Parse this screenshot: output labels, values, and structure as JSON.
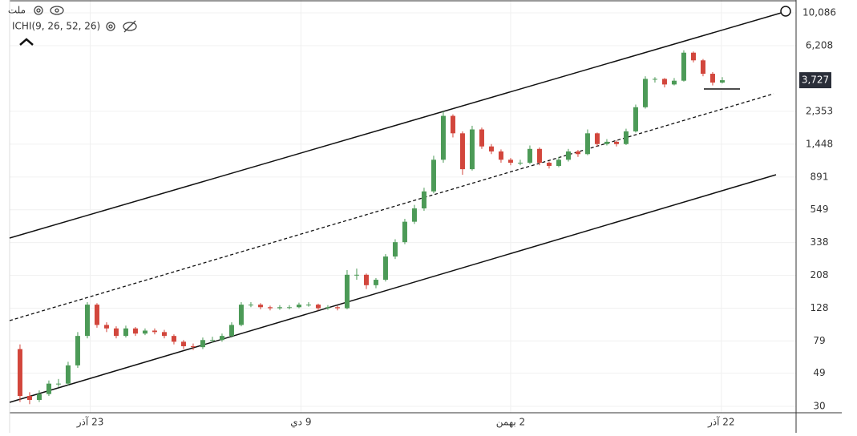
{
  "chart_data": {
    "type": "candlestick",
    "symbol": "ملت",
    "indicator": "ICHI(9, 26, 52, 26)",
    "log_y": true,
    "grid": true,
    "up_color": "#4c9a57",
    "down_color": "#d2463c",
    "ylim": [
      27.3,
      12200
    ],
    "yticks": [
      30,
      49,
      79,
      128,
      208,
      338,
      549,
      891,
      {
        "value": 1448,
        "label": "1,448"
      },
      {
        "value": 2353,
        "label": "2,353"
      },
      {
        "value": 6208,
        "label": "6,208"
      },
      {
        "value": 10086,
        "label": "10,086"
      }
    ],
    "xlim": [
      -1.08,
      80.67
    ],
    "xticks": [
      {
        "value": 7.3,
        "label": "23 آذر"
      },
      {
        "value": 29.2,
        "label": "9 دي"
      },
      {
        "value": 51,
        "label": "2 بهمن"
      },
      {
        "value": 72.9,
        "label": "22 آذر"
      }
    ],
    "last_price": 3727,
    "last_price_label": "3,727",
    "ohlc": [
      [
        70,
        75,
        32,
        35
      ],
      [
        35,
        37,
        31,
        33
      ],
      [
        33,
        38,
        32,
        36
      ],
      [
        36,
        44,
        35,
        42
      ],
      [
        42,
        45,
        40,
        42
      ],
      [
        42,
        58,
        41,
        55
      ],
      [
        55,
        90,
        53,
        85
      ],
      [
        85,
        140,
        82,
        135
      ],
      [
        135,
        138,
        96,
        100
      ],
      [
        100,
        104,
        90,
        95
      ],
      [
        95,
        98,
        82,
        85
      ],
      [
        85,
        99,
        83,
        95
      ],
      [
        95,
        97,
        85,
        88
      ],
      [
        88,
        95,
        86,
        92
      ],
      [
        92,
        95,
        87,
        90
      ],
      [
        90,
        93,
        82,
        85
      ],
      [
        85,
        87,
        75,
        78
      ],
      [
        78,
        80,
        70,
        73
      ],
      [
        73,
        76,
        69,
        72
      ],
      [
        72,
        83,
        70,
        80
      ],
      [
        80,
        84,
        77,
        80
      ],
      [
        80,
        88,
        78,
        85
      ],
      [
        85,
        104,
        83,
        100
      ],
      [
        100,
        140,
        98,
        135
      ],
      [
        135,
        140,
        130,
        135
      ],
      [
        135,
        138,
        126,
        130
      ],
      [
        130,
        133,
        124,
        128
      ],
      [
        128,
        134,
        125,
        130
      ],
      [
        130,
        134,
        126,
        130
      ],
      [
        130,
        139,
        128,
        135
      ],
      [
        135,
        140,
        131,
        135
      ],
      [
        135,
        137,
        124,
        128
      ],
      [
        128,
        134,
        125,
        130
      ],
      [
        130,
        133,
        124,
        128
      ],
      [
        128,
        225,
        126,
        210
      ],
      [
        210,
        230,
        195,
        210
      ],
      [
        210,
        214,
        170,
        180
      ],
      [
        180,
        200,
        172,
        195
      ],
      [
        195,
        285,
        190,
        275
      ],
      [
        275,
        355,
        265,
        340
      ],
      [
        340,
        480,
        330,
        460
      ],
      [
        460,
        590,
        445,
        560
      ],
      [
        560,
        760,
        540,
        720
      ],
      [
        720,
        1220,
        700,
        1150
      ],
      [
        1150,
        2350,
        1100,
        2200
      ],
      [
        2200,
        2250,
        1600,
        1700
      ],
      [
        1700,
        1750,
        920,
        1000
      ],
      [
        1000,
        1900,
        980,
        1800
      ],
      [
        1800,
        1850,
        1350,
        1400
      ],
      [
        1400,
        1450,
        1250,
        1300
      ],
      [
        1300,
        1340,
        1100,
        1150
      ],
      [
        1150,
        1180,
        1060,
        1100
      ],
      [
        1100,
        1150,
        1060,
        1100
      ],
      [
        1100,
        1420,
        1080,
        1350
      ],
      [
        1350,
        1380,
        1060,
        1100
      ],
      [
        1100,
        1120,
        1010,
        1050
      ],
      [
        1050,
        1200,
        1030,
        1150
      ],
      [
        1150,
        1350,
        1120,
        1300
      ],
      [
        1300,
        1330,
        1200,
        1250
      ],
      [
        1250,
        1800,
        1230,
        1700
      ],
      [
        1700,
        1720,
        1400,
        1450
      ],
      [
        1450,
        1560,
        1420,
        1500
      ],
      [
        1500,
        1530,
        1400,
        1450
      ],
      [
        1450,
        1820,
        1430,
        1750
      ],
      [
        1750,
        2600,
        1720,
        2500
      ],
      [
        2500,
        3950,
        2450,
        3800
      ],
      [
        3800,
        3900,
        3600,
        3800
      ],
      [
        3800,
        3850,
        3350,
        3500
      ],
      [
        3500,
        3850,
        3450,
        3700
      ],
      [
        3700,
        5800,
        3650,
        5600
      ],
      [
        5600,
        5700,
        4850,
        5000
      ],
      [
        5000,
        5100,
        3950,
        4100
      ],
      [
        4100,
        4200,
        3450,
        3600
      ],
      [
        3600,
        3900,
        3550,
        3727
      ]
    ]
  }
}
